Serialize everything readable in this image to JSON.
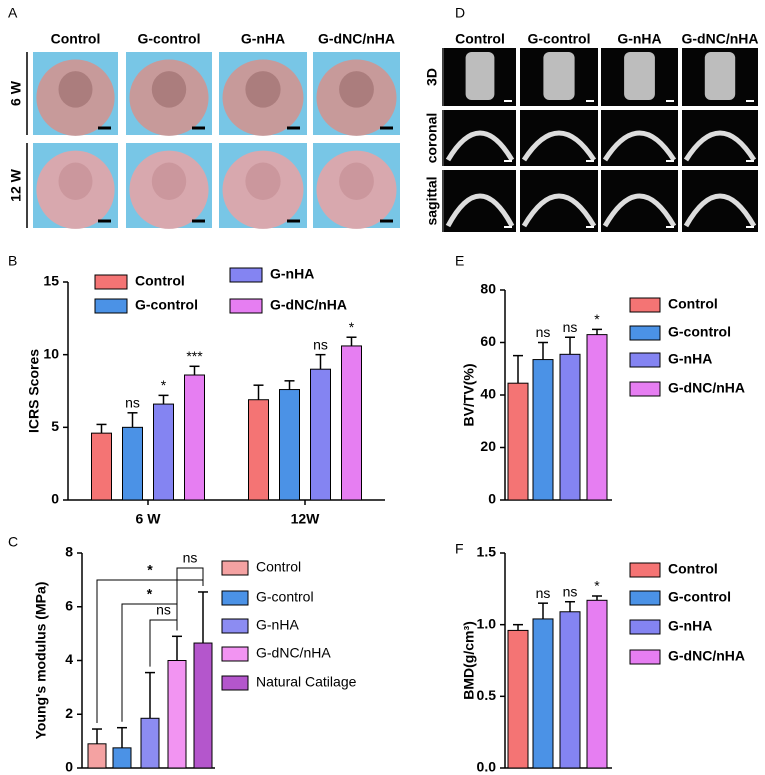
{
  "image_panels": [
    {
      "letter": "A",
      "columns": [
        "Control",
        "G-control",
        "G-nHA",
        "G-dNC/nHA"
      ],
      "rows": [
        "6 W",
        "12 W"
      ]
    },
    {
      "letter": "D",
      "columns": [
        "Control",
        "G-control",
        "G-nHA",
        "G-dNC/nHA"
      ],
      "rows": [
        "3D",
        "coronal",
        "sagittal"
      ]
    }
  ],
  "chart_data": [
    {
      "type": "grouped-bar",
      "letter": "B",
      "ylabel": "ICRS Scores",
      "categories": [
        "6 W",
        "12W"
      ],
      "ylim": [
        0,
        15
      ],
      "yticks": [
        0,
        5,
        10,
        15
      ],
      "series": [
        {
          "name": "Control",
          "color": "#f47474",
          "values": [
            4.6,
            6.9
          ],
          "errors": [
            0.6,
            1.0
          ],
          "annotations": [
            null,
            null
          ]
        },
        {
          "name": "G-control",
          "color": "#4b92e6",
          "values": [
            5.0,
            7.6
          ],
          "errors": [
            1.0,
            0.6
          ],
          "annotations": [
            "ns",
            null
          ]
        },
        {
          "name": "G-nHA",
          "color": "#8484f2",
          "values": [
            6.6,
            9.0
          ],
          "errors": [
            0.6,
            1.0
          ],
          "annotations": [
            "*",
            "ns"
          ]
        },
        {
          "name": "G-dNC/nHA",
          "color": "#e67ef2",
          "values": [
            8.6,
            10.6
          ],
          "errors": [
            0.6,
            0.6
          ],
          "annotations": [
            "***",
            "*"
          ]
        }
      ]
    },
    {
      "type": "bar",
      "letter": "C",
      "ylabel": "Young's modulus (MPa)",
      "categories": [
        "Control",
        "G-control",
        "G-nHA",
        "G-dNC/nHA",
        "Natural Catilage"
      ],
      "colors": [
        "#f4a2a2",
        "#4b92e6",
        "#8c8cf2",
        "#f294f2",
        "#b456cc"
      ],
      "values": [
        0.9,
        0.75,
        1.85,
        4.0,
        4.65
      ],
      "errors": [
        0.55,
        0.75,
        1.7,
        0.9,
        1.9
      ],
      "ylim": [
        0,
        8
      ],
      "yticks": [
        0,
        2,
        4,
        6,
        8
      ],
      "brackets": [
        {
          "bars": [
            3,
            4
          ],
          "label": "ns"
        },
        {
          "bars": [
            0,
            4
          ],
          "label": "*"
        },
        {
          "bars": [
            1,
            3
          ],
          "label": "*"
        },
        {
          "bars": [
            2,
            3
          ],
          "label": "ns"
        }
      ]
    },
    {
      "type": "bar",
      "letter": "E",
      "ylabel": "BV/TV(%)",
      "categories": [
        "Control",
        "G-control",
        "G-nHA",
        "G-dNC/nHA"
      ],
      "colors": [
        "#f47474",
        "#4b92e6",
        "#8484f2",
        "#e67ef2"
      ],
      "values": [
        44.5,
        53.5,
        55.5,
        63
      ],
      "errors": [
        10.5,
        6.5,
        6.5,
        2
      ],
      "annotations": [
        null,
        "ns",
        "ns",
        "*"
      ],
      "ylim": [
        0,
        80
      ],
      "yticks": [
        0,
        20,
        40,
        60,
        80
      ]
    },
    {
      "type": "bar",
      "letter": "F",
      "ylabel": "BMD(g/cm³)",
      "categories": [
        "Control",
        "G-control",
        "G-nHA",
        "G-dNC/nHA"
      ],
      "colors": [
        "#f47474",
        "#4b92e6",
        "#8484f2",
        "#e67ef2"
      ],
      "values": [
        0.96,
        1.04,
        1.09,
        1.17
      ],
      "errors": [
        0.04,
        0.11,
        0.07,
        0.03
      ],
      "annotations": [
        null,
        "ns",
        "ns",
        "*"
      ],
      "ylim": [
        0,
        1.5
      ],
      "yticks": [
        {
          "value": 0,
          "label": "0.0"
        },
        {
          "value": 0.5,
          "label": "0.5"
        },
        {
          "value": 1,
          "label": "1.0"
        },
        {
          "value": 1.5,
          "label": "1.5"
        }
      ]
    }
  ]
}
